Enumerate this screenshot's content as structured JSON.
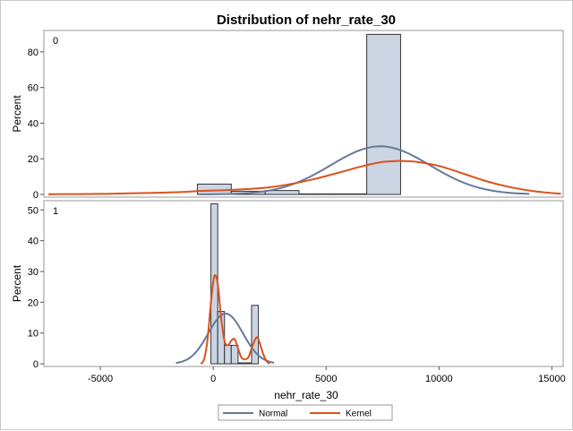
{
  "chart_data": {
    "type": "histogram",
    "title": "Distribution of nehr_rate_30",
    "xlabel": "nehr_rate_30",
    "ylabel": "Percent",
    "xlim": [
      -7500,
      15500
    ],
    "xticks": [
      -5000,
      0,
      5000,
      10000,
      15000
    ],
    "legend": {
      "position": "bottom",
      "entries": [
        {
          "name": "Normal",
          "color": "#667a99"
        },
        {
          "name": "Kernel",
          "color": "#d9531e"
        }
      ]
    },
    "bar_fill": "#cbd5e3",
    "bar_edge": "#333333",
    "panels": [
      {
        "label": "0",
        "ylim": [
          0,
          92
        ],
        "yticks": [
          0,
          20,
          40,
          60,
          80
        ],
        "bins": [
          {
            "x0": -700,
            "x1": 800,
            "percent": 5.8
          },
          {
            "x0": 800,
            "x1": 2300,
            "percent": 1.8
          },
          {
            "x0": 2300,
            "x1": 3800,
            "percent": 2.2
          },
          {
            "x0": 3800,
            "x1": 5300,
            "percent": 0.3
          },
          {
            "x0": 5300,
            "x1": 6800,
            "percent": 0.3
          },
          {
            "x0": 6800,
            "x1": 8300,
            "percent": 89.8
          }
        ],
        "normal": {
          "mean": 7400,
          "sd": 2200,
          "peak": 27,
          "range": [
            -600,
            14000
          ]
        },
        "kernel": {
          "peak": 19,
          "range": [
            -7300,
            15400
          ],
          "points": [
            [
              -7300,
              0.1
            ],
            [
              -6000,
              0.2
            ],
            [
              -4500,
              0.4
            ],
            [
              -3000,
              0.8
            ],
            [
              -1500,
              1.3
            ],
            [
              -500,
              2.0
            ],
            [
              500,
              2.4
            ],
            [
              1500,
              3.0
            ],
            [
              2500,
              4.0
            ],
            [
              3500,
              6.0
            ],
            [
              4500,
              8.7
            ],
            [
              5500,
              12.0
            ],
            [
              6500,
              15.5
            ],
            [
              7500,
              18.2
            ],
            [
              8300,
              18.8
            ],
            [
              9000,
              18.3
            ],
            [
              10000,
              16.0
            ],
            [
              11000,
              12.0
            ],
            [
              12000,
              7.8
            ],
            [
              13000,
              4.5
            ],
            [
              14000,
              2.2
            ],
            [
              14800,
              1.0
            ],
            [
              15400,
              0.4
            ]
          ]
        }
      },
      {
        "label": "1",
        "ylim": [
          0,
          53
        ],
        "yticks": [
          0,
          10,
          20,
          30,
          40,
          50
        ],
        "bins": [
          {
            "x0": -100,
            "x1": 200,
            "percent": 52
          },
          {
            "x0": 200,
            "x1": 500,
            "percent": 17
          },
          {
            "x0": 500,
            "x1": 800,
            "percent": 6
          },
          {
            "x0": 800,
            "x1": 1100,
            "percent": 6
          },
          {
            "x0": 1100,
            "x1": 1400,
            "percent": 0.3
          },
          {
            "x0": 1400,
            "x1": 1700,
            "percent": 0.3
          },
          {
            "x0": 1700,
            "x1": 2000,
            "percent": 19
          }
        ],
        "normal": {
          "mean": 550,
          "sd": 770,
          "peak": 16.3,
          "range": [
            -1650,
            2700
          ]
        },
        "kernel": {
          "peak": 28.5,
          "range": [
            -550,
            2500
          ],
          "points": [
            [
              -550,
              0
            ],
            [
              -400,
              1.5
            ],
            [
              -250,
              8
            ],
            [
              -100,
              20
            ],
            [
              50,
              28.5
            ],
            [
              200,
              26
            ],
            [
              350,
              15
            ],
            [
              500,
              7.5
            ],
            [
              650,
              6
            ],
            [
              800,
              7.5
            ],
            [
              950,
              8
            ],
            [
              1100,
              5
            ],
            [
              1250,
              2
            ],
            [
              1400,
              1.5
            ],
            [
              1550,
              2
            ],
            [
              1700,
              5
            ],
            [
              1850,
              7.8
            ],
            [
              1950,
              8.6
            ],
            [
              2050,
              7
            ],
            [
              2200,
              3.5
            ],
            [
              2350,
              1
            ],
            [
              2500,
              0
            ]
          ]
        }
      }
    ]
  }
}
